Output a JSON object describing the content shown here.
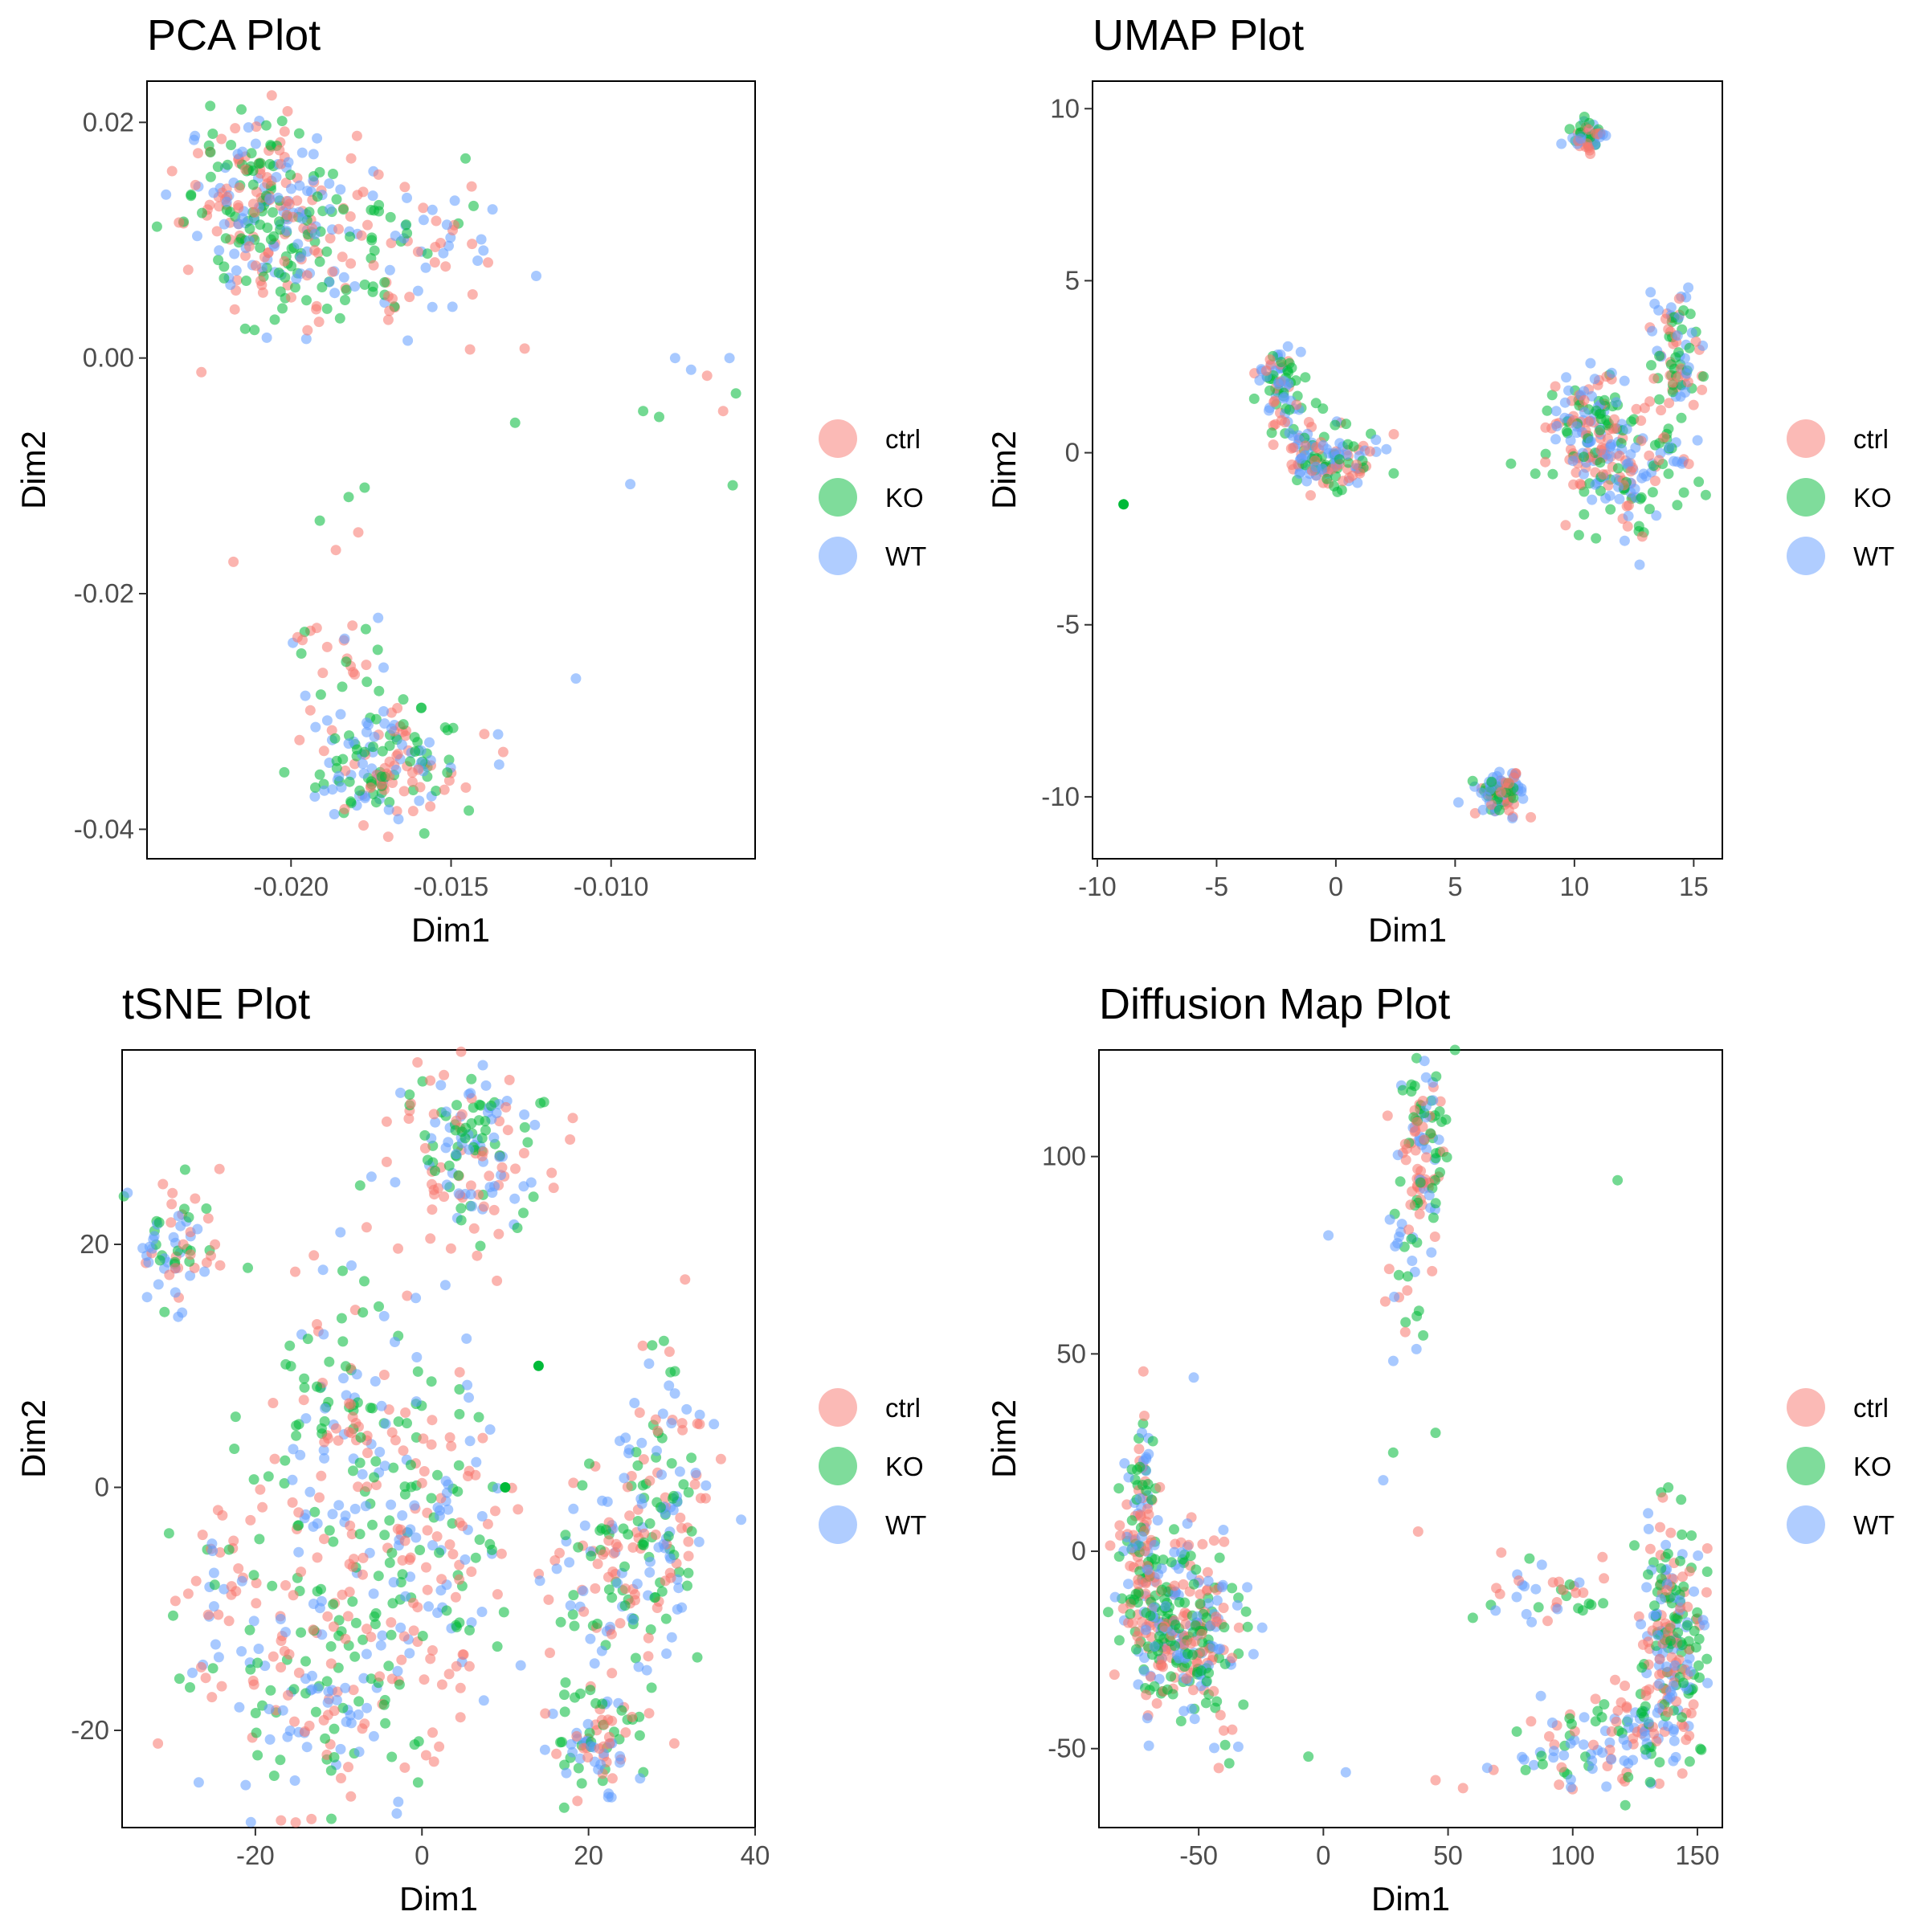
{
  "colors": {
    "ctrl": "#F8766D",
    "KO": "#00BA38",
    "WT": "#619CFF"
  },
  "legend": {
    "entries": [
      "ctrl",
      "KO",
      "WT"
    ]
  },
  "chart_data": [
    {
      "type": "scatter",
      "title": "PCA Plot",
      "xlabel": "Dim1",
      "ylabel": "Dim2",
      "xlim": [
        -0.0245,
        -0.0055
      ],
      "ylim": [
        -0.0425,
        0.0235
      ],
      "xticks": [
        -0.02,
        -0.015,
        -0.01
      ],
      "xtick_labels": [
        "-0.020",
        "-0.015",
        "-0.010"
      ],
      "yticks": [
        0.02,
        0.0,
        -0.02,
        -0.04
      ],
      "ytick_labels": [
        "0.02",
        "0.00",
        "-0.02",
        "-0.04"
      ],
      "grid": false,
      "legend": "right",
      "groups": [
        "ctrl",
        "KO",
        "WT"
      ],
      "clusters": [
        {
          "center": [
            -0.0208,
            0.0128
          ],
          "spread": [
            0.0012,
            0.004
          ],
          "n": 260
        },
        {
          "center": [
            -0.0175,
            0.009
          ],
          "spread": [
            0.002,
            0.0035
          ],
          "n": 130
        },
        {
          "center": [
            -0.017,
            -0.0345
          ],
          "spread": [
            0.0012,
            0.0025
          ],
          "n": 170
        },
        {
          "center": [
            -0.0185,
            -0.025
          ],
          "spread": [
            0.0008,
            0.002
          ],
          "n": 25
        }
      ],
      "outliers": [
        {
          "x": -0.008,
          "y": 0.0,
          "g": "WT"
        },
        {
          "x": -0.0075,
          "y": -0.001,
          "g": "WT"
        },
        {
          "x": -0.007,
          "y": -0.0015,
          "g": "ctrl"
        },
        {
          "x": -0.0063,
          "y": 0.0,
          "g": "WT"
        },
        {
          "x": -0.0061,
          "y": -0.003,
          "g": "KO"
        },
        {
          "x": -0.0065,
          "y": -0.0045,
          "g": "ctrl"
        },
        {
          "x": -0.0085,
          "y": -0.005,
          "g": "KO"
        },
        {
          "x": -0.009,
          "y": -0.0045,
          "g": "KO"
        },
        {
          "x": -0.0094,
          "y": -0.0107,
          "g": "WT"
        },
        {
          "x": -0.0062,
          "y": -0.0108,
          "g": "KO"
        },
        {
          "x": -0.0111,
          "y": -0.0272,
          "g": "WT"
        },
        {
          "x": -0.013,
          "y": -0.0055,
          "g": "KO"
        },
        {
          "x": -0.0127,
          "y": 0.0008,
          "g": "ctrl"
        },
        {
          "x": -0.0135,
          "y": -0.0345,
          "g": "WT"
        },
        {
          "x": -0.0177,
          "y": -0.011,
          "g": "KO"
        },
        {
          "x": -0.0182,
          "y": -0.0118,
          "g": "KO"
        },
        {
          "x": -0.0191,
          "y": -0.0138,
          "g": "KO"
        },
        {
          "x": -0.0179,
          "y": -0.0148,
          "g": "ctrl"
        },
        {
          "x": -0.0186,
          "y": -0.0163,
          "g": "ctrl"
        },
        {
          "x": -0.0218,
          "y": -0.0173,
          "g": "ctrl"
        },
        {
          "x": -0.0228,
          "y": -0.0012,
          "g": "ctrl"
        },
        {
          "x": -0.0235,
          "y": 0.0115,
          "g": "ctrl"
        }
      ]
    },
    {
      "type": "scatter",
      "title": "UMAP Plot",
      "xlabel": "Dim1",
      "ylabel": "Dim2",
      "xlim": [
        -10.2,
        16.2
      ],
      "ylim": [
        -11.8,
        10.8
      ],
      "xticks": [
        -10,
        -5,
        0,
        5,
        10,
        15
      ],
      "xtick_labels": [
        "-10",
        "-5",
        "0",
        "5",
        "10",
        "15"
      ],
      "yticks": [
        10,
        5,
        0,
        -5,
        -10
      ],
      "ytick_labels": [
        "10",
        "5",
        "0",
        "-5",
        "-10"
      ],
      "grid": false,
      "legend": "right",
      "groups": [
        "ctrl",
        "KO",
        "WT"
      ],
      "clusters": [
        {
          "center": [
            10.6,
            9.2
          ],
          "spread": [
            0.35,
            0.25
          ],
          "n": 50
        },
        {
          "center": [
            -2.5,
            2.0
          ],
          "spread": [
            0.4,
            0.5
          ],
          "n": 60
        },
        {
          "center": [
            -1.5,
            0.5
          ],
          "spread": [
            0.6,
            0.6
          ],
          "n": 40
        },
        {
          "center": [
            -0.2,
            -0.3
          ],
          "spread": [
            0.9,
            0.45
          ],
          "n": 110
        },
        {
          "center": [
            14.3,
            2.8
          ],
          "spread": [
            0.5,
            1.1
          ],
          "n": 90
        },
        {
          "center": [
            10.8,
            1.0
          ],
          "spread": [
            1.0,
            0.8
          ],
          "n": 120
        },
        {
          "center": [
            12.0,
            -0.5
          ],
          "spread": [
            1.3,
            0.9
          ],
          "n": 140
        },
        {
          "center": [
            7.0,
            -9.9
          ],
          "spread": [
            0.45,
            0.3
          ],
          "n": 100
        }
      ],
      "outliers": [
        {
          "x": -8.9,
          "y": -1.5,
          "g": "KO"
        }
      ]
    },
    {
      "type": "scatter",
      "title": "tSNE Plot",
      "xlabel": "Dim1",
      "ylabel": "Dim2",
      "xlim": [
        -36,
        40
      ],
      "ylim": [
        -28,
        36
      ],
      "xticks": [
        -20,
        0,
        20,
        40
      ],
      "xtick_labels": [
        "-20",
        "0",
        "20",
        "40"
      ],
      "yticks": [
        20,
        0,
        -20
      ],
      "ytick_labels": [
        "20",
        "0",
        "-20"
      ],
      "grid": false,
      "legend": "right",
      "groups": [
        "ctrl",
        "KO",
        "WT"
      ],
      "clusters": [
        {
          "center": [
            -29,
            20
          ],
          "spread": [
            2.5,
            2.5
          ],
          "n": 70
        },
        {
          "center": [
            5,
            28
          ],
          "spread": [
            4.5,
            3.8
          ],
          "n": 160
        },
        {
          "center": [
            -12,
            -16
          ],
          "spread": [
            6.5,
            5.0
          ],
          "n": 180
        },
        {
          "center": [
            -10,
            5
          ],
          "spread": [
            5.0,
            7.0
          ],
          "n": 150
        },
        {
          "center": [
            1,
            -5
          ],
          "spread": [
            5.0,
            6.0
          ],
          "n": 170
        },
        {
          "center": [
            -24,
            -7
          ],
          "spread": [
            2.8,
            4.0
          ],
          "n": 40
        },
        {
          "center": [
            21,
            -21
          ],
          "spread": [
            3.0,
            2.2
          ],
          "n": 90
        },
        {
          "center": [
            22,
            -8
          ],
          "spread": [
            3.0,
            4.0
          ],
          "n": 80
        },
        {
          "center": [
            29,
            -1
          ],
          "spread": [
            3.2,
            6.0
          ],
          "n": 150
        }
      ],
      "outliers": [
        {
          "x": 14,
          "y": 10,
          "g": "KO"
        },
        {
          "x": 10,
          "y": 0,
          "g": "KO"
        },
        {
          "x": 9,
          "y": 17,
          "g": "ctrl"
        }
      ]
    },
    {
      "type": "scatter",
      "title": "Diffusion Map Plot",
      "xlabel": "Dim1",
      "ylabel": "Dim2",
      "xlim": [
        -90,
        160
      ],
      "ylim": [
        -70,
        127
      ],
      "xticks": [
        -50,
        0,
        50,
        100,
        150
      ],
      "xtick_labels": [
        "-50",
        "0",
        "50",
        "100",
        "150"
      ],
      "yticks": [
        100,
        50,
        0,
        -50
      ],
      "ytick_labels": [
        "100",
        "50",
        "0",
        "-50"
      ],
      "grid": false,
      "legend": "right",
      "groups": [
        "ctrl",
        "KO",
        "WT"
      ],
      "clusters": [
        {
          "center": [
            -73,
            5
          ],
          "spread": [
            4.0,
            14.0
          ],
          "n": 120
        },
        {
          "center": [
            -60,
            -18
          ],
          "spread": [
            11.0,
            11.0
          ],
          "n": 260
        },
        {
          "center": [
            -45,
            -25
          ],
          "spread": [
            8.0,
            12.0
          ],
          "n": 60
        },
        {
          "center": [
            40,
            100
          ],
          "spread": [
            5.0,
            12.0
          ],
          "n": 110
        },
        {
          "center": [
            33,
            70
          ],
          "spread": [
            4.0,
            8.0
          ],
          "n": 25
        },
        {
          "center": [
            140,
            -20
          ],
          "spread": [
            6.0,
            14.0
          ],
          "n": 200
        },
        {
          "center": [
            128,
            -45
          ],
          "spread": [
            11.0,
            6.0
          ],
          "n": 80
        },
        {
          "center": [
            100,
            -50
          ],
          "spread": [
            16.0,
            5.0
          ],
          "n": 50
        },
        {
          "center": [
            95,
            -10
          ],
          "spread": [
            16.0,
            5.0
          ],
          "n": 40
        }
      ],
      "outliers": [
        {
          "x": 118,
          "y": 94,
          "g": "KO"
        },
        {
          "x": 2,
          "y": 80,
          "g": "WT"
        },
        {
          "x": -52,
          "y": 44,
          "g": "WT"
        },
        {
          "x": -6,
          "y": -52,
          "g": "KO"
        },
        {
          "x": 9,
          "y": -56,
          "g": "WT"
        },
        {
          "x": 38,
          "y": 5,
          "g": "ctrl"
        },
        {
          "x": 45,
          "y": 30,
          "g": "KO"
        },
        {
          "x": 24,
          "y": 18,
          "g": "WT"
        },
        {
          "x": 28,
          "y": 25,
          "g": "KO"
        },
        {
          "x": 45,
          "y": -58,
          "g": "ctrl"
        },
        {
          "x": 56,
          "y": -60,
          "g": "ctrl"
        }
      ]
    }
  ]
}
